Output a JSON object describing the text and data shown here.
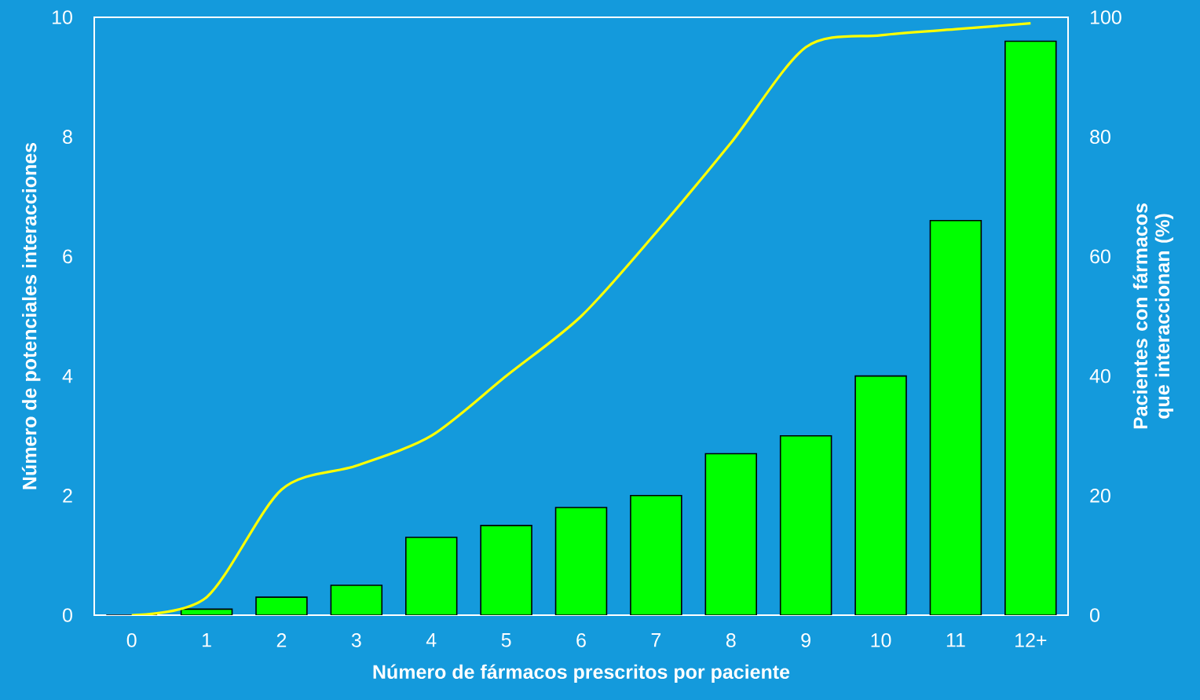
{
  "chart_data": {
    "type": "bar",
    "categories": [
      "0",
      "1",
      "2",
      "3",
      "4",
      "5",
      "6",
      "7",
      "8",
      "9",
      "10",
      "11",
      "12+"
    ],
    "series": [
      {
        "color": "#00ff00",
        "values": [
          0,
          0.1,
          0.3,
          0.5,
          1.3,
          1.5,
          1.8,
          2.0,
          2.7,
          3.0,
          4.0,
          6.6,
          9.6
        ]
      },
      {
        "type": "line",
        "axis": "y2",
        "color": "#ffff00",
        "values": [
          0,
          3,
          21,
          25,
          30,
          40,
          50,
          64,
          79,
          95,
          97,
          98,
          99
        ]
      }
    ],
    "xlabel": "Número de fármacos prescritos por paciente",
    "ylabel": "Número de potenciales interacciones",
    "y2label": "Pacientes con fármacos que interaccionan (%)",
    "ylim": [
      0,
      10
    ],
    "yticks": [
      0,
      2,
      4,
      6,
      8,
      10
    ],
    "y2lim": [
      0,
      100
    ],
    "y2ticks": [
      0,
      20,
      40,
      60,
      80,
      100
    ],
    "marker": "none",
    "grid": false
  }
}
